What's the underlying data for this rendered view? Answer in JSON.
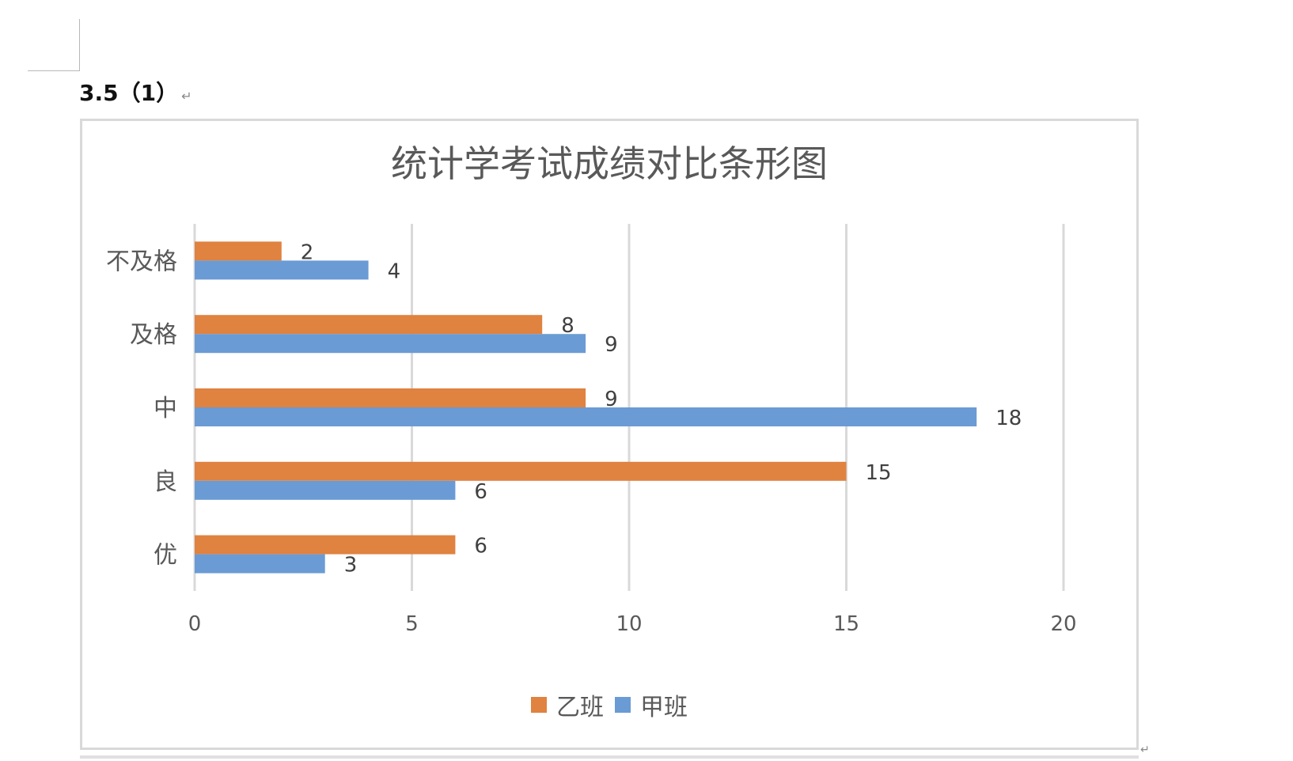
{
  "document": {
    "heading": "3.5（1）",
    "para_mark": "↵",
    "end_mark": "↵"
  },
  "chart_data": {
    "type": "bar",
    "orientation": "horizontal",
    "title": "统计学考试成绩对比条形图",
    "categories": [
      "不及格",
      "及格",
      "中",
      "良",
      "优"
    ],
    "series": [
      {
        "name": "乙班",
        "color": "#e08240",
        "values": [
          2,
          8,
          9,
          15,
          6
        ]
      },
      {
        "name": "甲班",
        "color": "#6a9bd4",
        "values": [
          4,
          9,
          18,
          6,
          3
        ]
      }
    ],
    "xlim": [
      0,
      20
    ],
    "xticks": [
      "0",
      "5",
      "10",
      "15",
      "20"
    ],
    "grid": true,
    "legend_position": "bottom",
    "xlabel": "",
    "ylabel": ""
  }
}
